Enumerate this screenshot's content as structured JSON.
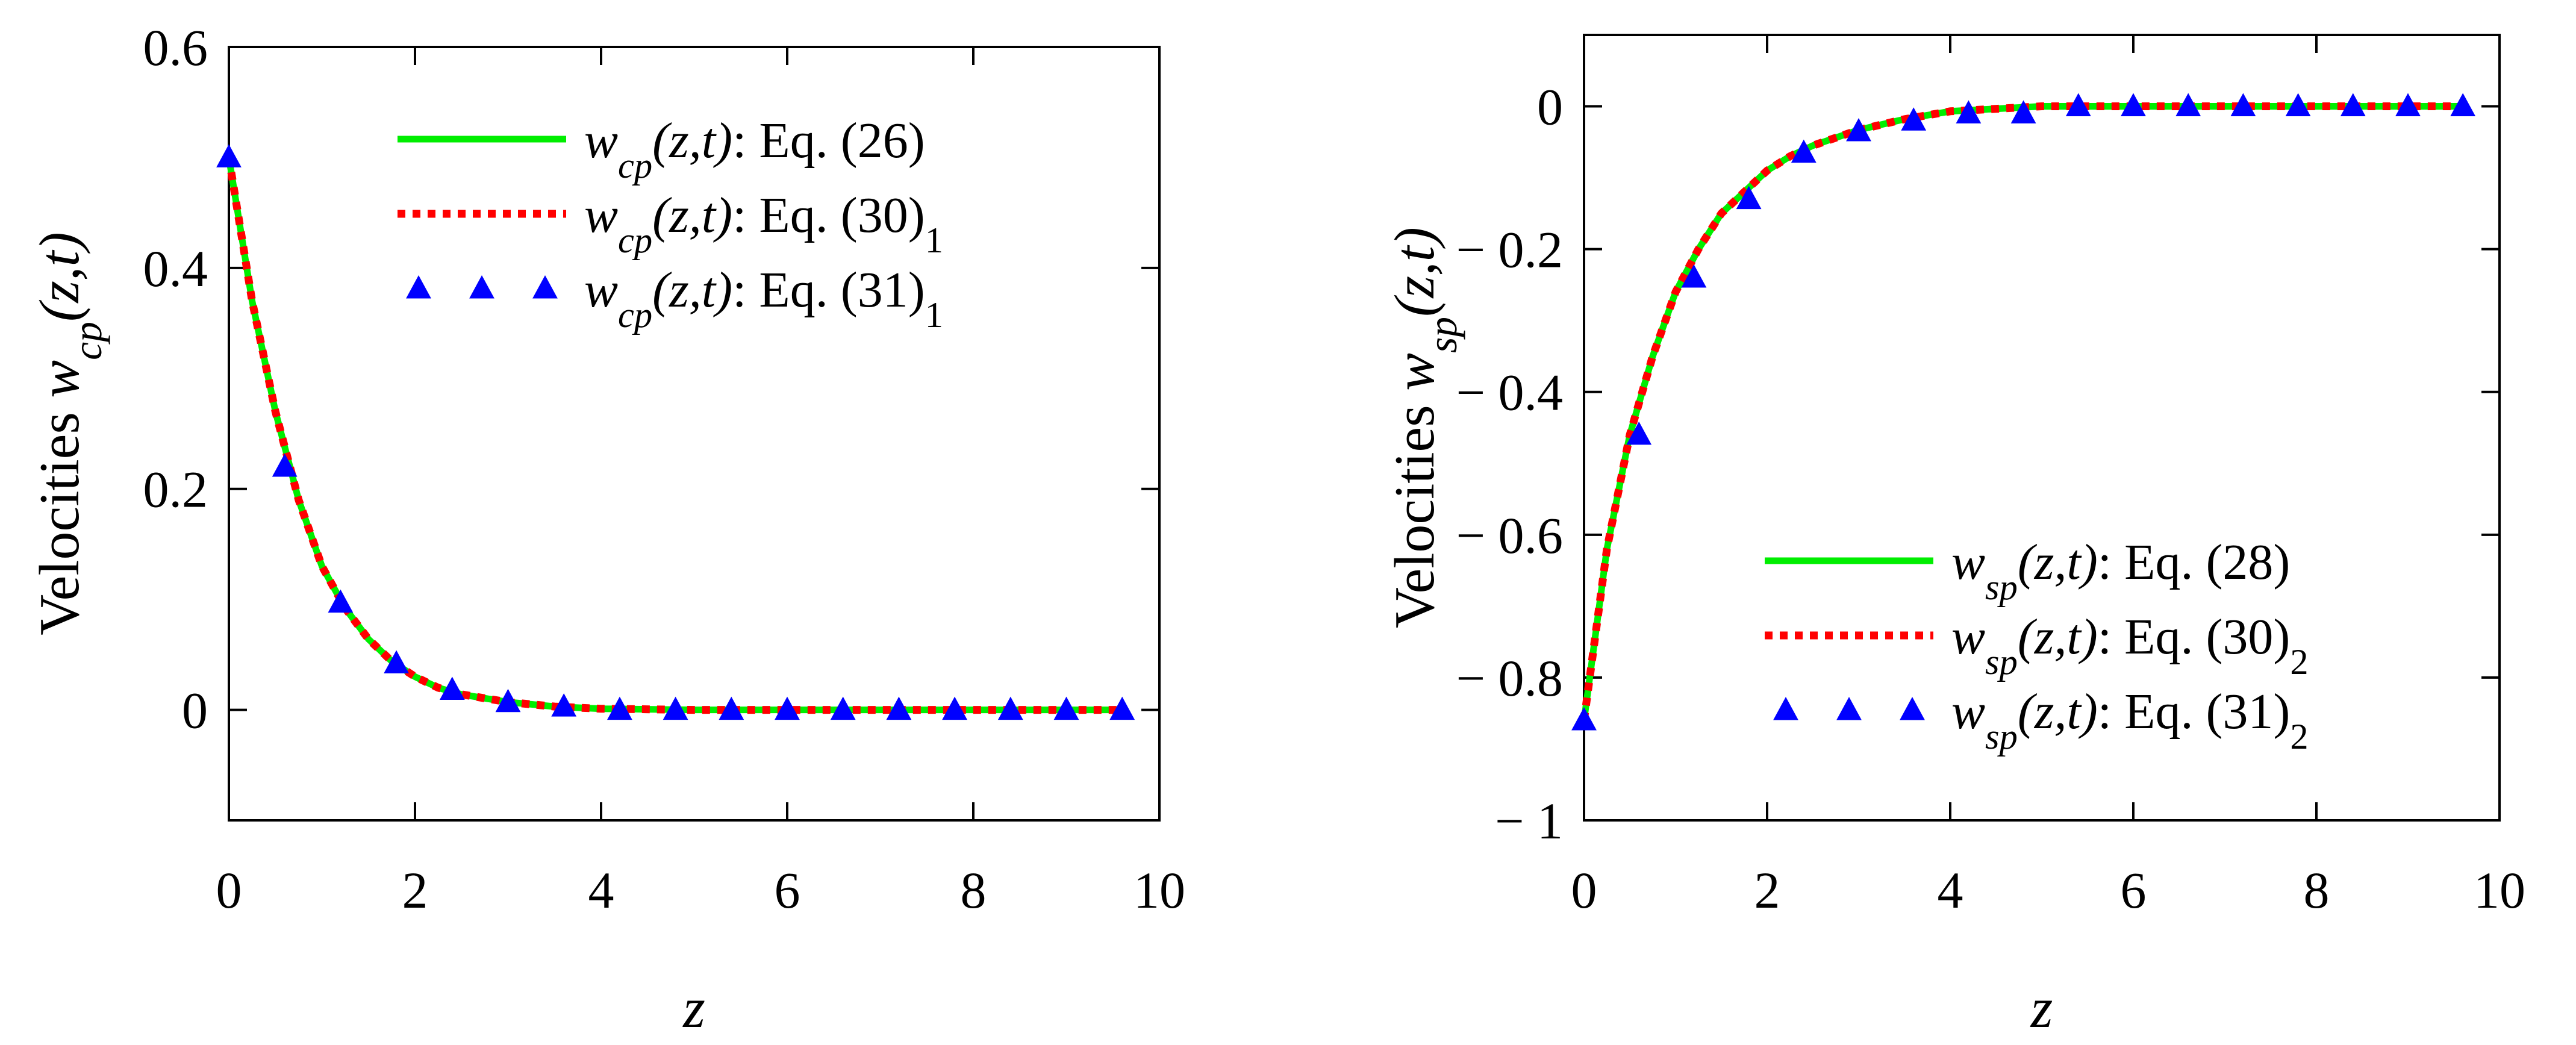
{
  "chart_data": [
    {
      "type": "line",
      "xlabel": "z",
      "ylabel_text": "Velocities ",
      "ylabel_var": "w",
      "ylabel_sub": "cp",
      "ylabel_args": "(z,t)",
      "xlim": [
        0,
        10
      ],
      "ylim": [
        -0.1,
        0.6
      ],
      "xticks": [
        0,
        2,
        4,
        6,
        8,
        10
      ],
      "xtick_labels": [
        "0",
        "2",
        "4",
        "6",
        "8",
        "10"
      ],
      "yticks": [
        0,
        0.2,
        0.4,
        0.6
      ],
      "ytick_labels": [
        "0",
        "0.2",
        "0.4",
        "0.6"
      ],
      "legend_position": "top-right",
      "series": [
        {
          "name": "w_cp(z,t): Eq. (26)",
          "legend_var": "w",
          "legend_sub": "cp",
          "legend_args": "(z,t)",
          "legend_eq": ": Eq. (26)",
          "legend_eq_sub": "",
          "style": "solid",
          "color": "#00ee00",
          "x": [
            0,
            0.25,
            0.5,
            0.75,
            1.0,
            1.25,
            1.5,
            1.75,
            2.0,
            2.25,
            2.5,
            3.0,
            3.5,
            4.0,
            5.0,
            6.0,
            7.0,
            8.0,
            9.0,
            9.6
          ],
          "y": [
            0.5,
            0.37,
            0.27,
            0.19,
            0.13,
            0.092,
            0.064,
            0.044,
            0.03,
            0.02,
            0.014,
            0.007,
            0.003,
            0.001,
            0.0,
            0.0,
            0.0,
            0.0,
            0.0,
            0.0
          ]
        },
        {
          "name": "w_cp(z,t): Eq. (30)_1",
          "legend_var": "w",
          "legend_sub": "cp",
          "legend_args": "(z,t)",
          "legend_eq": ": Eq. (30)",
          "legend_eq_sub": "1",
          "style": "dotted",
          "color": "#ff0000",
          "x": [
            0,
            0.25,
            0.5,
            0.75,
            1.0,
            1.25,
            1.5,
            1.75,
            2.0,
            2.25,
            2.5,
            3.0,
            3.5,
            4.0,
            5.0,
            6.0,
            7.0,
            8.0,
            9.0,
            9.6
          ],
          "y": [
            0.5,
            0.37,
            0.27,
            0.19,
            0.13,
            0.092,
            0.064,
            0.044,
            0.03,
            0.02,
            0.014,
            0.007,
            0.003,
            0.001,
            0.0,
            0.0,
            0.0,
            0.0,
            0.0,
            0.0
          ]
        },
        {
          "name": "w_cp(z,t): Eq. (31)_1",
          "legend_var": "w",
          "legend_sub": "cp",
          "legend_args": "(z,t)",
          "legend_eq": ": Eq. (31)",
          "legend_eq_sub": "1",
          "style": "triangles",
          "color": "#0000ff",
          "x": [
            0,
            0.6,
            1.2,
            1.8,
            2.4,
            3.0,
            3.6,
            4.2,
            4.8,
            5.4,
            6.0,
            6.6,
            7.2,
            7.8,
            8.4,
            9.0,
            9.6
          ],
          "y": [
            0.5,
            0.22,
            0.097,
            0.042,
            0.018,
            0.007,
            0.003,
            0.0,
            0.0,
            0.0,
            0.0,
            0.0,
            0.0,
            0.0,
            0.0,
            0.0,
            0.0
          ]
        }
      ]
    },
    {
      "type": "line",
      "xlabel": "z",
      "ylabel_text": "Velocities ",
      "ylabel_var": "w",
      "ylabel_sub": "sp",
      "ylabel_args": "(z,t)",
      "xlim": [
        0,
        10
      ],
      "ylim": [
        -1.0,
        0.1
      ],
      "xticks": [
        0,
        2,
        4,
        6,
        8,
        10
      ],
      "xtick_labels": [
        "0",
        "2",
        "4",
        "6",
        "8",
        "10"
      ],
      "yticks": [
        -1.0,
        -0.8,
        -0.6,
        -0.4,
        -0.2,
        0
      ],
      "ytick_labels": [
        "− 1",
        "− 0.8",
        "− 0.6",
        "− 0.4",
        "− 0.2",
        "0"
      ],
      "legend_position": "bottom-right",
      "series": [
        {
          "name": "w_sp(z,t): Eq. (28)",
          "legend_var": "w",
          "legend_sub": "sp",
          "legend_args": "(z,t)",
          "legend_eq": ": Eq. (28)",
          "legend_eq_sub": "",
          "style": "solid",
          "color": "#00ee00",
          "x": [
            0,
            0.25,
            0.5,
            0.75,
            1.0,
            1.25,
            1.5,
            1.75,
            2.0,
            2.25,
            2.5,
            3.0,
            3.5,
            4.0,
            5.0,
            6.0,
            7.0,
            8.0,
            9.0,
            9.6
          ],
          "y": [
            -0.86,
            -0.62,
            -0.46,
            -0.35,
            -0.26,
            -0.2,
            -0.15,
            -0.12,
            -0.09,
            -0.07,
            -0.055,
            -0.033,
            -0.018,
            -0.007,
            0.0,
            0.0,
            0.0,
            0.0,
            0.0,
            0.0
          ]
        },
        {
          "name": "w_sp(z,t): Eq. (30)_2",
          "legend_var": "w",
          "legend_sub": "sp",
          "legend_args": "(z,t)",
          "legend_eq": ": Eq. (30)",
          "legend_eq_sub": "2",
          "style": "dotted",
          "color": "#ff0000",
          "x": [
            0,
            0.25,
            0.5,
            0.75,
            1.0,
            1.25,
            1.5,
            1.75,
            2.0,
            2.25,
            2.5,
            3.0,
            3.5,
            4.0,
            5.0,
            6.0,
            7.0,
            8.0,
            9.0,
            9.6
          ],
          "y": [
            -0.86,
            -0.62,
            -0.46,
            -0.35,
            -0.26,
            -0.2,
            -0.15,
            -0.12,
            -0.09,
            -0.07,
            -0.055,
            -0.033,
            -0.018,
            -0.007,
            0.0,
            0.0,
            0.0,
            0.0,
            0.0,
            0.0
          ]
        },
        {
          "name": "w_sp(z,t): Eq. (31)_2",
          "legend_var": "w",
          "legend_sub": "sp",
          "legend_args": "(z,t)",
          "legend_eq": ": Eq. (31)",
          "legend_eq_sub": "2",
          "style": "triangles",
          "color": "#0000ff",
          "x": [
            0,
            0.6,
            1.2,
            1.8,
            2.4,
            3.0,
            3.6,
            4.2,
            4.8,
            5.4,
            6.0,
            6.6,
            7.2,
            7.8,
            8.4,
            9.0,
            9.6
          ],
          "y": [
            -0.86,
            -0.46,
            -0.24,
            -0.13,
            -0.065,
            -0.035,
            -0.02,
            -0.01,
            -0.01,
            0.0,
            0.0,
            0.0,
            0.0,
            0.0,
            0.0,
            0.0,
            0.0
          ]
        }
      ]
    }
  ]
}
